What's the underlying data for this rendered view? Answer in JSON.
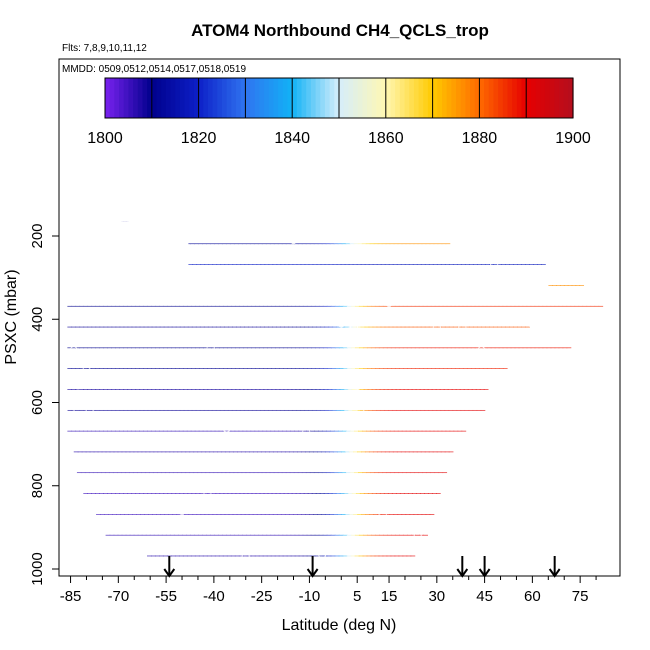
{
  "chart_data": {
    "type": "heatmap",
    "title": "ATOM4 Northbound CH4_QCLS_trop",
    "flights_note": "Flts: 7,8,9,10,11,12",
    "dates_note": "MMDD: 0509,0512,0514,0517,0518,0519",
    "xlabel": "Latitude (deg N)",
    "ylabel": "PSXC (mbar)",
    "xlim": [
      -88,
      85
    ],
    "ylim": [
      1020,
      0
    ],
    "xticks": [
      -85,
      -70,
      -55,
      -40,
      -25,
      -10,
      5,
      15,
      30,
      45,
      60,
      75
    ],
    "xticks_minor": [
      -80,
      -75,
      -65,
      -60,
      -50,
      -45,
      -35,
      -30,
      -20,
      -15,
      -5,
      0,
      10,
      20,
      25,
      35,
      40,
      50,
      55,
      65,
      70,
      80
    ],
    "yticks": [
      200,
      400,
      600,
      800,
      1000
    ],
    "colorbar": {
      "min": 1800,
      "max": 1900,
      "step": 10,
      "tick_labels": [
        "1800",
        "1820",
        "1840",
        "1860",
        "1880",
        "1900"
      ],
      "colors": [
        "#7a22f0",
        "#00008c",
        "#0d20c8",
        "#2f74f0",
        "#12b2f6",
        "#d6eefb",
        "#fff7b2",
        "#ffca00",
        "#ff6a00",
        "#e60000",
        "#b50e1e"
      ]
    },
    "rows": [
      {
        "p": 165,
        "x0": -69,
        "x1": -67,
        "v0": 1809,
        "v1": 1809
      },
      {
        "p": 165,
        "x0": -50,
        "x1": 34,
        "v0": 1812,
        "v1": 1876
      },
      {
        "p": 218,
        "x0": -50,
        "x1": 34,
        "v0": 1812,
        "v1": 1876
      },
      {
        "p": 218,
        "x0": -76,
        "x1": -72,
        "v0": 1807,
        "v1": 1808
      },
      {
        "p": 268,
        "x0": -76,
        "x1": -72,
        "v0": 1807,
        "v1": 1808
      },
      {
        "p": 218,
        "x0": -48,
        "x1": 64,
        "v0": 1820,
        "v1": 1818
      },
      {
        "p": 268,
        "x0": -48,
        "x1": 64,
        "v0": 1820,
        "v1": 1818
      },
      {
        "p": 268,
        "x0": -86,
        "x1": 65,
        "v0": 1811,
        "v1": 1830
      },
      {
        "p": 318,
        "x0": -86,
        "x1": 65,
        "v0": 1811,
        "v1": 1830
      },
      {
        "p": 268,
        "x0": 65,
        "x1": 76,
        "v0": 1892,
        "v1": 1876
      },
      {
        "p": 318,
        "x0": 65,
        "x1": 76,
        "v0": 1892,
        "v1": 1876
      },
      {
        "p": 318,
        "x0": -86,
        "x1": 82,
        "v0": 1810,
        "v1": 1886
      },
      {
        "p": 368,
        "x0": -86,
        "x1": 82,
        "v0": 1810,
        "v1": 1886
      },
      {
        "p": 368,
        "x0": -86,
        "x1": 59,
        "v0": 1809,
        "v1": 1882
      },
      {
        "p": 418,
        "x0": -86,
        "x1": 59,
        "v0": 1809,
        "v1": 1882
      },
      {
        "p": 418,
        "x0": -86,
        "x1": 72,
        "v0": 1810,
        "v1": 1888
      },
      {
        "p": 468,
        "x0": -86,
        "x1": 72,
        "v0": 1810,
        "v1": 1888
      },
      {
        "p": 468,
        "x0": -86,
        "x1": 52,
        "v0": 1811,
        "v1": 1887
      },
      {
        "p": 518,
        "x0": -86,
        "x1": 52,
        "v0": 1811,
        "v1": 1887
      },
      {
        "p": 518,
        "x0": -86,
        "x1": 46,
        "v0": 1808,
        "v1": 1890
      },
      {
        "p": 568,
        "x0": -86,
        "x1": 46,
        "v0": 1808,
        "v1": 1890
      },
      {
        "p": 568,
        "x0": -86,
        "x1": 45,
        "v0": 1809,
        "v1": 1891
      },
      {
        "p": 618,
        "x0": -86,
        "x1": 45,
        "v0": 1809,
        "v1": 1891
      },
      {
        "p": 618,
        "x0": -86,
        "x1": 39,
        "v0": 1806,
        "v1": 1890
      },
      {
        "p": 668,
        "x0": -86,
        "x1": 39,
        "v0": 1806,
        "v1": 1890
      },
      {
        "p": 668,
        "x0": -84,
        "x1": 35,
        "v0": 1807,
        "v1": 1891
      },
      {
        "p": 718,
        "x0": -84,
        "x1": 35,
        "v0": 1807,
        "v1": 1891
      },
      {
        "p": 718,
        "x0": -83,
        "x1": 33,
        "v0": 1806,
        "v1": 1891
      },
      {
        "p": 768,
        "x0": -83,
        "x1": 33,
        "v0": 1806,
        "v1": 1891
      },
      {
        "p": 768,
        "x0": -81,
        "x1": 31,
        "v0": 1805,
        "v1": 1891
      },
      {
        "p": 818,
        "x0": -81,
        "x1": 31,
        "v0": 1805,
        "v1": 1891
      },
      {
        "p": 818,
        "x0": -77,
        "x1": 29,
        "v0": 1805,
        "v1": 1891
      },
      {
        "p": 868,
        "x0": -77,
        "x1": 29,
        "v0": 1805,
        "v1": 1891
      },
      {
        "p": 868,
        "x0": -74,
        "x1": 27,
        "v0": 1806,
        "v1": 1890
      },
      {
        "p": 918,
        "x0": -74,
        "x1": 27,
        "v0": 1806,
        "v1": 1890
      },
      {
        "p": 918,
        "x0": -61,
        "x1": 23,
        "v0": 1807,
        "v1": 1891
      },
      {
        "p": 968,
        "x0": -61,
        "x1": 23,
        "v0": 1807,
        "v1": 1891
      },
      {
        "p": 968,
        "x0": -54,
        "x1": 18,
        "v0": 1814,
        "v1": 1890
      },
      {
        "p": 1010,
        "x0": -54,
        "x1": 18,
        "v0": 1814,
        "v1": 1890
      }
    ],
    "overlay_white": [
      [
        -69,
        -62,
        165,
        200
      ],
      [
        -86,
        -48,
        200,
        218
      ],
      [
        -72,
        -48,
        218,
        262
      ],
      [
        -83,
        -82,
        535,
        568
      ],
      [
        54,
        60,
        318,
        340
      ],
      [
        62,
        65,
        318,
        330
      ],
      [
        59,
        82,
        372,
        418
      ]
    ],
    "samples": [
      [
        -82,
        1000
      ],
      [
        -83,
        850
      ],
      [
        -85,
        620
      ],
      [
        -84,
        475
      ],
      [
        -85,
        290
      ],
      [
        -78,
        330
      ],
      [
        -74,
        285
      ],
      [
        -79,
        620
      ],
      [
        -80,
        515
      ],
      [
        -61,
        648
      ],
      [
        -55,
        951
      ],
      [
        -52,
        320
      ],
      [
        -50,
        320
      ],
      [
        -50,
        860
      ],
      [
        -46,
        385
      ],
      [
        -44,
        555
      ],
      [
        -41,
        470
      ],
      [
        -38,
        445
      ],
      [
        -36,
        662
      ],
      [
        -35,
        800
      ],
      [
        -42,
        820
      ],
      [
        -30,
        970
      ],
      [
        -27,
        995
      ],
      [
        -24,
        680
      ],
      [
        -20,
        250
      ],
      [
        -22,
        530
      ],
      [
        -15,
        210
      ],
      [
        -12,
        505
      ],
      [
        -11,
        670
      ],
      [
        -9,
        355
      ],
      [
        -8,
        250
      ],
      [
        -6,
        965
      ],
      [
        -5,
        990
      ],
      [
        -3,
        310
      ],
      [
        -2,
        340
      ],
      [
        0,
        410
      ],
      [
        1,
        458
      ],
      [
        3,
        300
      ],
      [
        4,
        420
      ],
      [
        4,
        990
      ],
      [
        5,
        560
      ],
      [
        6,
        620
      ],
      [
        7,
        640
      ],
      [
        9,
        300
      ],
      [
        10,
        330
      ],
      [
        11,
        590
      ],
      [
        12,
        700
      ],
      [
        13,
        870
      ],
      [
        15,
        360
      ],
      [
        16,
        750
      ],
      [
        18,
        280
      ],
      [
        20,
        990
      ],
      [
        24,
        920
      ],
      [
        29,
        690
      ],
      [
        30,
        420
      ],
      [
        31,
        320
      ],
      [
        33,
        160
      ],
      [
        36,
        400
      ],
      [
        38,
        420
      ],
      [
        39,
        630
      ],
      [
        44,
        475
      ],
      [
        47,
        400
      ],
      [
        48,
        270
      ],
      [
        52,
        305
      ],
      [
        56,
        345
      ],
      [
        57,
        300
      ],
      [
        62,
        400
      ],
      [
        64,
        600
      ]
    ],
    "flight_arrows": [
      -54,
      -9,
      38,
      45,
      67
    ]
  }
}
